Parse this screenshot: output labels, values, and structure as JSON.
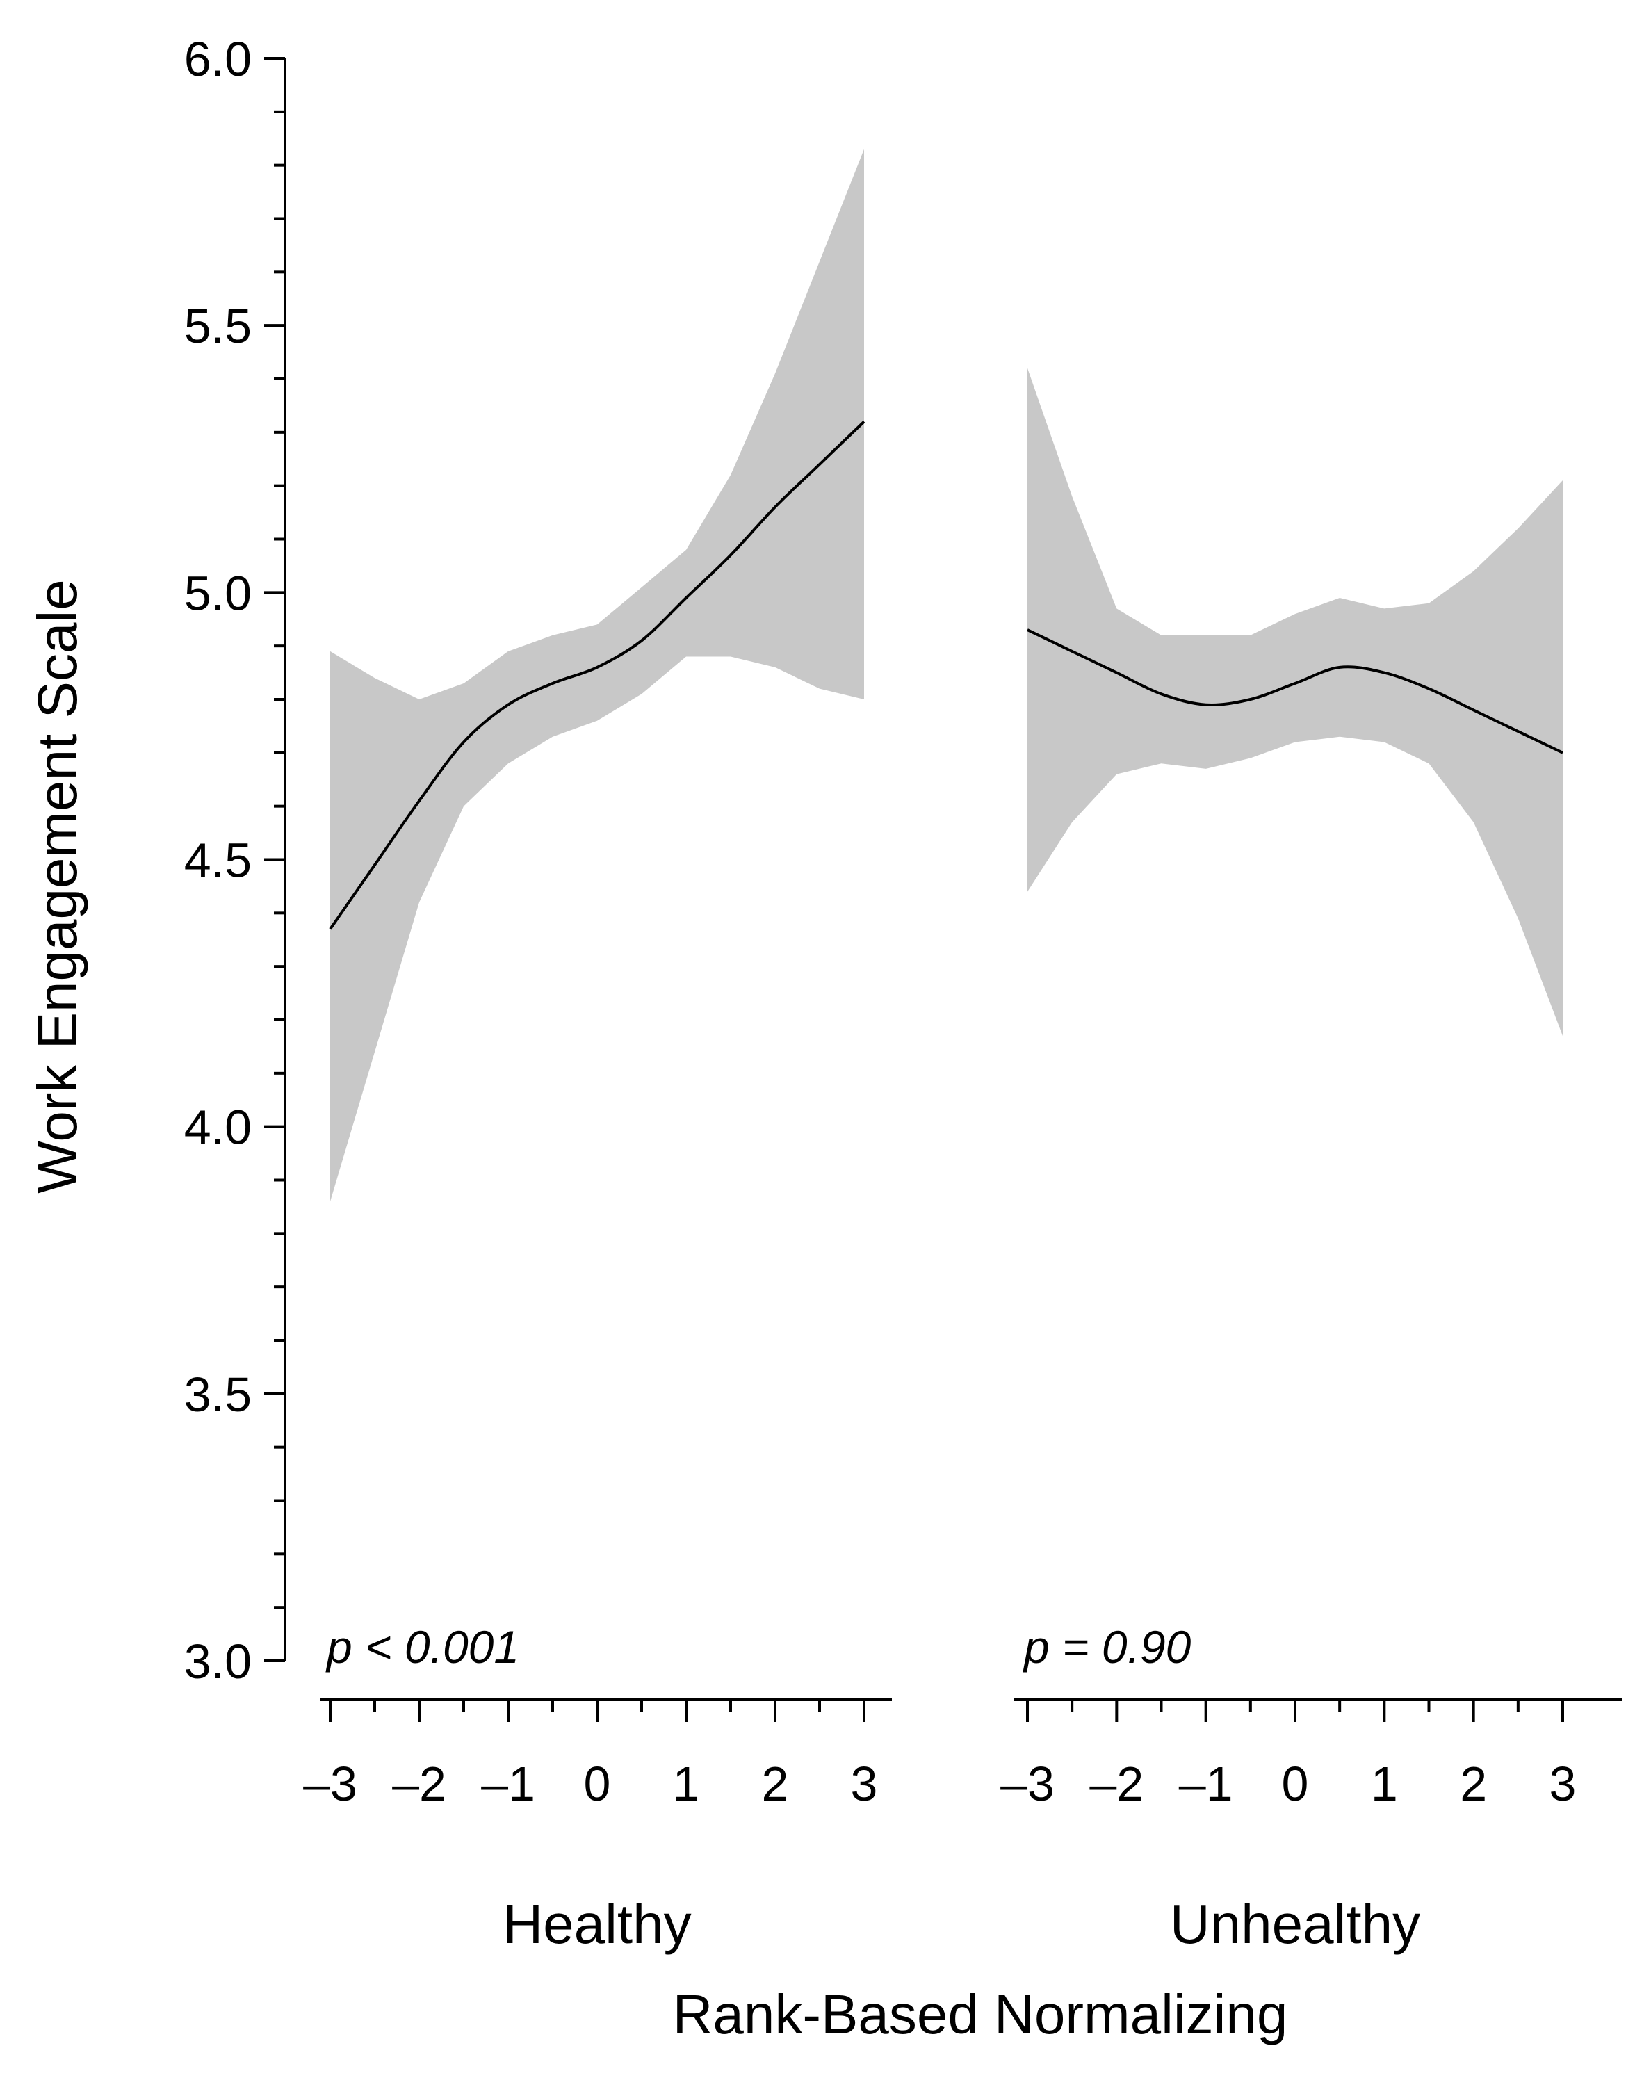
{
  "chart_data": {
    "type": "line",
    "ylabel": "Work Engagement Scale",
    "xlabel": "Rank-Based Normalizing",
    "ylim": [
      3.0,
      6.0
    ],
    "yticks": [
      3.0,
      3.5,
      4.0,
      4.5,
      5.0,
      5.5,
      6.0
    ],
    "ytick_labels": [
      "3.0",
      "3.5",
      "4.0",
      "4.5",
      "5.0",
      "5.5",
      "6.0"
    ],
    "xlim": [
      -3,
      3
    ],
    "xticks": [
      -3,
      -2,
      -1,
      0,
      1,
      2,
      3
    ],
    "xtick_labels": [
      "–3",
      "–2",
      "–1",
      "0",
      "1",
      "2",
      "3"
    ],
    "panels": [
      {
        "name": "Healthy",
        "annotation": "p < 0.001",
        "x": [
          -3,
          -2.5,
          -2,
          -1.5,
          -1,
          -0.5,
          0,
          0.5,
          1,
          1.5,
          2,
          2.5,
          3
        ],
        "fit": [
          4.37,
          4.49,
          4.61,
          4.72,
          4.79,
          4.83,
          4.86,
          4.91,
          4.99,
          5.07,
          5.16,
          5.24,
          5.32
        ],
        "upper": [
          4.89,
          4.84,
          4.8,
          4.83,
          4.89,
          4.92,
          4.94,
          5.01,
          5.08,
          5.22,
          5.41,
          5.62,
          5.83
        ],
        "lower": [
          3.86,
          4.14,
          4.42,
          4.6,
          4.68,
          4.73,
          4.76,
          4.81,
          4.88,
          4.88,
          4.86,
          4.82,
          4.8
        ]
      },
      {
        "name": "Unhealthy",
        "annotation": "p = 0.90",
        "x": [
          -3,
          -2.5,
          -2,
          -1.5,
          -1,
          -0.5,
          0,
          0.5,
          1,
          1.5,
          2,
          2.5,
          3
        ],
        "fit": [
          4.93,
          4.89,
          4.85,
          4.81,
          4.79,
          4.8,
          4.83,
          4.86,
          4.85,
          4.82,
          4.78,
          4.74,
          4.7
        ],
        "upper": [
          5.42,
          5.18,
          4.97,
          4.92,
          4.92,
          4.92,
          4.96,
          4.99,
          4.97,
          4.98,
          5.04,
          5.12,
          5.21
        ],
        "lower": [
          4.44,
          4.57,
          4.66,
          4.68,
          4.67,
          4.69,
          4.72,
          4.73,
          4.72,
          4.68,
          4.57,
          4.39,
          4.17
        ]
      }
    ]
  }
}
